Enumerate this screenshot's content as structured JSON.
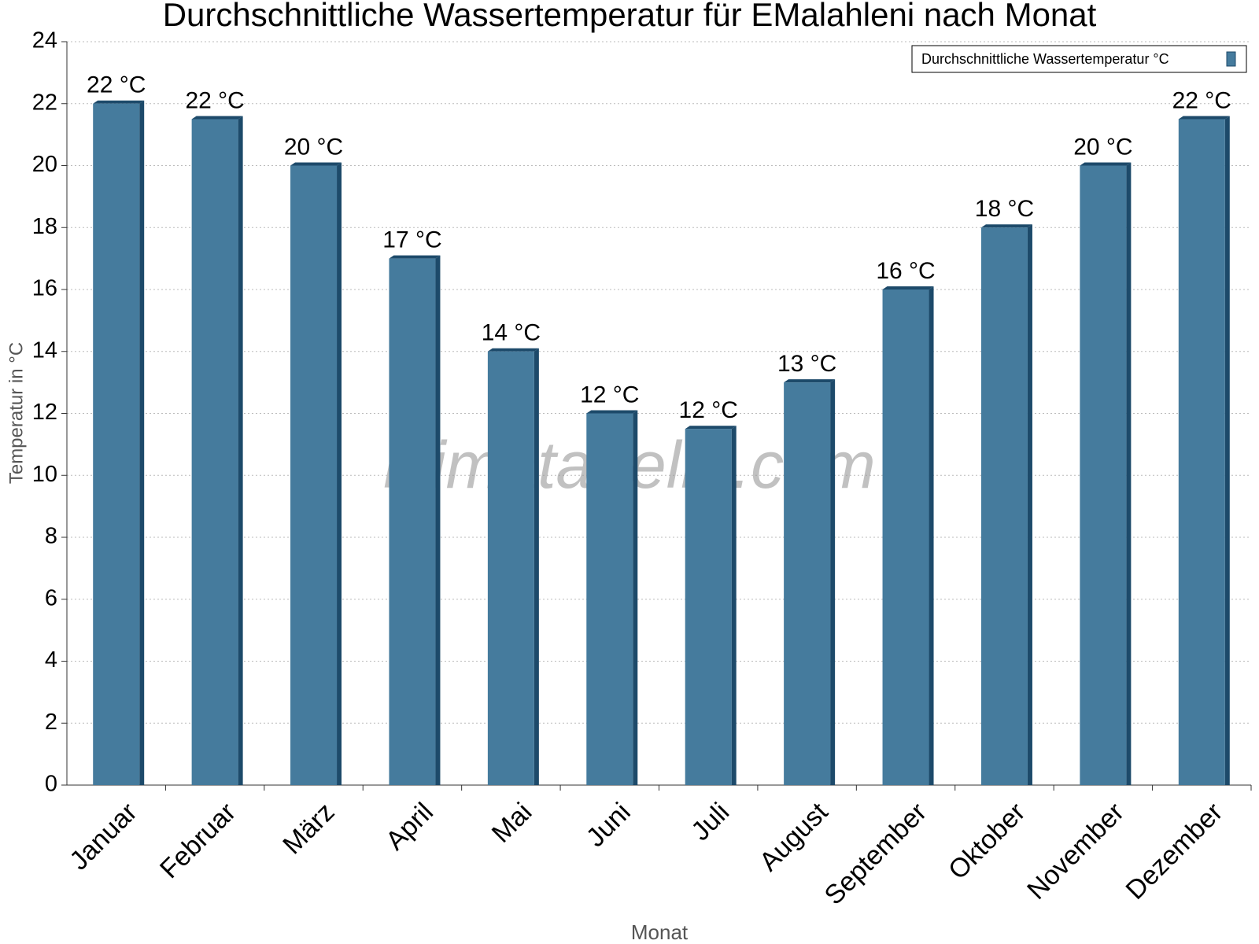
{
  "chart_data": {
    "type": "bar",
    "title": "Durchschnittliche Wassertemperatur für EMalahleni nach Monat",
    "x_label": "Monat",
    "y_label": "Temperatur in °C",
    "watermark": "klimatabelle.com",
    "categories": [
      "Januar",
      "Februar",
      "März",
      "April",
      "Mai",
      "Juni",
      "Juli",
      "August",
      "September",
      "Oktober",
      "November",
      "Dezember"
    ],
    "series": [
      {
        "name": "Durchschnittliche Wassertemperatur °C",
        "color": "#457b9d",
        "values": [
          22,
          21.5,
          20,
          17,
          14,
          12,
          11.5,
          13,
          16,
          18,
          20,
          21.5
        ],
        "value_labels": [
          "22 °C",
          "22 °C",
          "20 °C",
          "17 °C",
          "14 °C",
          "12 °C",
          "12 °C",
          "13 °C",
          "16 °C",
          "18 °C",
          "20 °C",
          "22 °C"
        ]
      }
    ],
    "ylim": [
      0,
      24
    ],
    "yticks": [
      0,
      2,
      4,
      6,
      8,
      10,
      12,
      14,
      16,
      18,
      20,
      22,
      24
    ],
    "grid": true,
    "legend": "top-right"
  }
}
